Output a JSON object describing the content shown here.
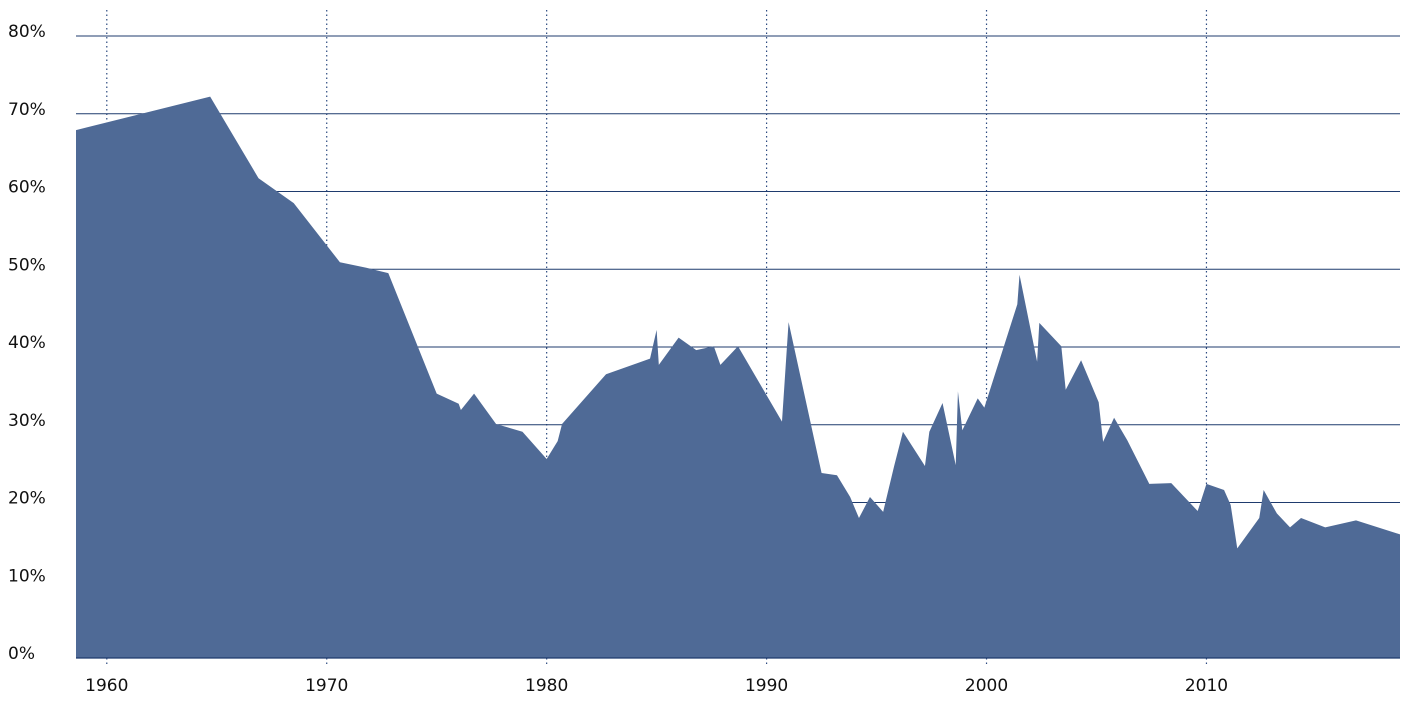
{
  "chart_data": {
    "type": "area",
    "color": "#4f6a96",
    "grid": true,
    "x": [
      1958.6,
      1964.7,
      1966.9,
      1968.5,
      1970.6,
      1971.8,
      1972.8,
      1975.0,
      1976.0,
      1976.1,
      1976.7,
      1977.7,
      1978.9,
      1980.0,
      1980.5,
      1980.7,
      1982.7,
      1984.7,
      1985.0,
      1985.1,
      1986.0,
      1986.8,
      1987.6,
      1987.9,
      1988.7,
      1990.7,
      1991.0,
      1992.5,
      1993.2,
      1993.8,
      1994.2,
      1994.7,
      1995.3,
      1995.8,
      1996.2,
      1997.2,
      1997.4,
      1998.0,
      1998.6,
      1998.7,
      1998.9,
      1999.6,
      1999.9,
      2001.4,
      2001.5,
      2002.3,
      2002.4,
      2003.4,
      2003.6,
      2004.3,
      2005.1,
      2005.3,
      2005.8,
      2006.4,
      2007.4,
      2008.4,
      2009.6,
      2010.0,
      2010.8,
      2011.1,
      2011.4,
      2012.4,
      2012.6,
      2013.2,
      2013.8,
      2014.3,
      2015.4,
      2016.8,
      2018.8
    ],
    "values": [
      67.9,
      72.2,
      61.7,
      58.5,
      50.9,
      50.2,
      49.5,
      34.0,
      32.7,
      31.9,
      34.0,
      30.1,
      29.1,
      25.6,
      27.9,
      30.1,
      36.5,
      38.5,
      42.2,
      37.7,
      41.2,
      39.6,
      40.1,
      37.7,
      40.1,
      30.4,
      43.2,
      23.8,
      23.5,
      20.7,
      18.0,
      20.7,
      18.8,
      24.7,
      29.1,
      24.7,
      29.1,
      32.8,
      24.8,
      34.3,
      29.3,
      33.4,
      32.2,
      45.5,
      49.3,
      38.1,
      43.1,
      40.1,
      34.5,
      38.3,
      32.9,
      27.8,
      30.9,
      28.0,
      22.4,
      22.5,
      18.9,
      22.4,
      21.6,
      19.7,
      14.1,
      18.0,
      21.6,
      18.6,
      16.8,
      18.0,
      16.8,
      17.7,
      15.9
    ],
    "xlim": [
      1958.6,
      2018.8
    ],
    "xticks": [
      1960,
      1970,
      1980,
      1990,
      2000,
      2010
    ],
    "ylim": [
      0,
      80
    ],
    "yticks": [
      {
        "value": 0,
        "label": "0%"
      },
      {
        "value": 10,
        "label": "10%"
      },
      {
        "value": 20,
        "label": "20%"
      },
      {
        "value": 30,
        "label": "30%"
      },
      {
        "value": 40,
        "label": "40%"
      },
      {
        "value": 50,
        "label": "50%"
      },
      {
        "value": 60,
        "label": "60%"
      },
      {
        "value": 70,
        "label": "70%"
      },
      {
        "value": 80,
        "label": "80%"
      }
    ]
  }
}
